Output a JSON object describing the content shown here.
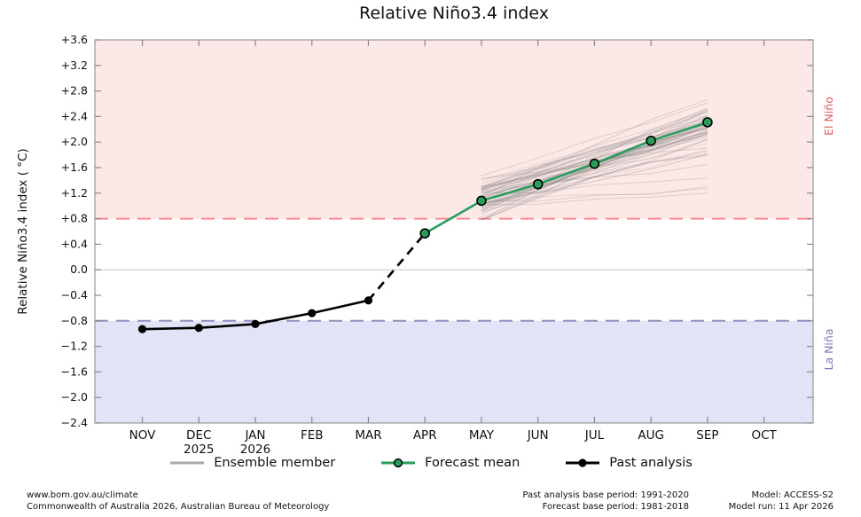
{
  "title": "Relative Niño3.4 index",
  "chart_data": {
    "type": "line",
    "title": "Relative Niño3.4 index",
    "ylabel": "Relative Niño3.4 index ( °C)",
    "ylim": [
      -2.4,
      3.6
    ],
    "ytick_step": 0.4,
    "ytick_labels": [
      "+3.6",
      "+3.2",
      "+2.8",
      "+2.4",
      "+2.0",
      "+1.6",
      "+1.2",
      "+0.8",
      "+0.4",
      "0.0",
      "−0.4",
      "−0.8",
      "−1.2",
      "−1.6",
      "−2.0",
      "−2.4"
    ],
    "categories": [
      "NOV",
      "DEC",
      "JAN",
      "FEB",
      "MAR",
      "APR",
      "MAY",
      "JUN",
      "JUL",
      "AUG",
      "SEP",
      "OCT"
    ],
    "year_labels": [
      {
        "month": "DEC",
        "year": "2025"
      },
      {
        "month": "JAN",
        "year": "2026"
      }
    ],
    "regions": [
      {
        "name": "El Niño",
        "from": 0.8,
        "to": 3.6,
        "fill": "#fce9e7",
        "label_color": "#e05c5c"
      },
      {
        "name": "La Niña",
        "from": -2.4,
        "to": -0.8,
        "fill": "#e3e3f8",
        "label_color": "#7a7ab8"
      }
    ],
    "threshold_lines": [
      {
        "value": 0.8,
        "color": "#fb8b8b"
      },
      {
        "value": -0.8,
        "color": "#8f8fc0"
      }
    ],
    "zero_line": {
      "value": 0,
      "color": "#c6c6c6"
    },
    "series": [
      {
        "name": "Past analysis",
        "style": "solid-marker",
        "color": "#000000",
        "x": [
          "NOV",
          "DEC",
          "JAN",
          "FEB",
          "MAR"
        ],
        "values": [
          -0.93,
          -0.91,
          -0.85,
          -0.68,
          -0.48
        ]
      },
      {
        "name": "Analysis-to-forecast transition",
        "style": "dashed",
        "color": "#000000",
        "x": [
          "MAR",
          "APR"
        ],
        "values": [
          -0.48,
          0.57
        ]
      },
      {
        "name": "Forecast mean",
        "style": "solid-marker",
        "color": "#2a9d5d",
        "x": [
          "APR",
          "MAY",
          "JUN",
          "JUL",
          "AUG",
          "SEP"
        ],
        "values": [
          0.57,
          1.08,
          1.34,
          1.66,
          2.02,
          2.31
        ]
      },
      {
        "name": "Ensemble member",
        "style": "ensemble",
        "color": "#9a9a9a",
        "x_start": "MAY",
        "x_end": "SEP",
        "member_count": 58,
        "start_range": [
          0.78,
          1.75
        ],
        "end_range": [
          1.2,
          2.9
        ]
      }
    ]
  },
  "legend": {
    "items": [
      {
        "label": "Ensemble member",
        "swatch_color": "#a9a9a9"
      },
      {
        "label": "Forecast mean",
        "swatch_color": "#2a9d5d"
      },
      {
        "label": "Past analysis",
        "swatch_color": "#000000"
      }
    ]
  },
  "footer": {
    "site": "www.bom.gov.au/climate",
    "copyright": "Commonwealth of Australia 2026, Australian Bureau of Meteorology",
    "past_base": "Past analysis base period: 1991-2020",
    "forecast_base": "Forecast base period: 1981-2018",
    "model": "Model: ACCESS-S2",
    "model_run": "Model run: 11 Apr 2026"
  }
}
